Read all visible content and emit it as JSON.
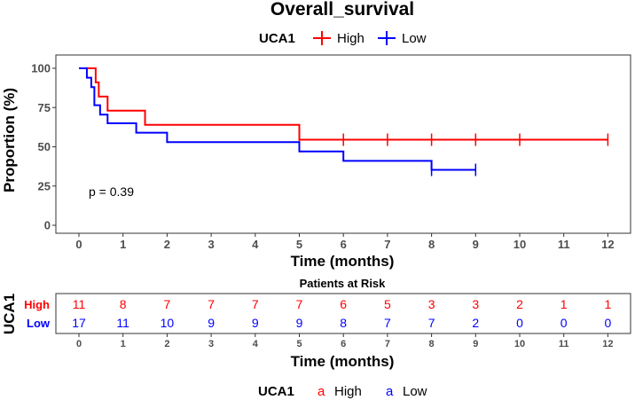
{
  "chart_data": {
    "type": "line",
    "subtype": "kaplan-meier",
    "title": "Overall_survival",
    "legend": {
      "title": "UCA1",
      "entries": [
        {
          "label": "High",
          "color": "#ff0000"
        },
        {
          "label": "Low",
          "color": "#0000ff"
        }
      ],
      "position": "top"
    },
    "xlabel": "Time (months)",
    "ylabel": "Proportion (%)",
    "xlim": [
      0,
      12
    ],
    "ylim": [
      0,
      100
    ],
    "x_ticks": [
      0,
      1,
      2,
      3,
      4,
      5,
      6,
      7,
      8,
      9,
      10,
      11,
      12
    ],
    "y_ticks": [
      0,
      25,
      50,
      75,
      100
    ],
    "pvalue_label": "p = 0.39",
    "series": [
      {
        "name": "High",
        "color": "#ff0000",
        "steps": [
          [
            0,
            100
          ],
          [
            0.38,
            91
          ],
          [
            0.45,
            82
          ],
          [
            0.65,
            73
          ],
          [
            1.5,
            64
          ],
          [
            5.0,
            54.5
          ],
          [
            12.0,
            54.5
          ]
        ],
        "censor_times": [
          5.0,
          6.0,
          7.0,
          8.0,
          9.0,
          10.0,
          12.0
        ]
      },
      {
        "name": "Low",
        "color": "#0000ff",
        "steps": [
          [
            0,
            100
          ],
          [
            0.18,
            94
          ],
          [
            0.28,
            88
          ],
          [
            0.35,
            76.5
          ],
          [
            0.48,
            70.5
          ],
          [
            0.65,
            65
          ],
          [
            1.3,
            59
          ],
          [
            2.0,
            53
          ],
          [
            5.0,
            47
          ],
          [
            6.0,
            41
          ],
          [
            8.0,
            35.3
          ],
          [
            9.0,
            35.3
          ]
        ],
        "censor_times": [
          8.0,
          9.0
        ]
      }
    ],
    "risk_table": {
      "title": "Patients at Risk",
      "ylabel": "UCA1",
      "xlabel": "Time (months)",
      "times": [
        0,
        1,
        2,
        3,
        4,
        5,
        6,
        7,
        8,
        9,
        10,
        11,
        12
      ],
      "rows": [
        {
          "label": "High",
          "color": "#ff0000",
          "values": [
            11,
            8,
            7,
            7,
            7,
            7,
            6,
            5,
            3,
            3,
            2,
            1,
            1
          ]
        },
        {
          "label": "Low",
          "color": "#0000ff",
          "values": [
            17,
            11,
            10,
            9,
            9,
            9,
            8,
            7,
            7,
            2,
            0,
            0,
            0
          ]
        }
      ]
    },
    "bottom_legend": {
      "title": "UCA1",
      "glyph": "a",
      "entries": [
        {
          "label": "High",
          "color": "#ff0000"
        },
        {
          "label": "Low",
          "color": "#0000ff"
        }
      ]
    }
  }
}
